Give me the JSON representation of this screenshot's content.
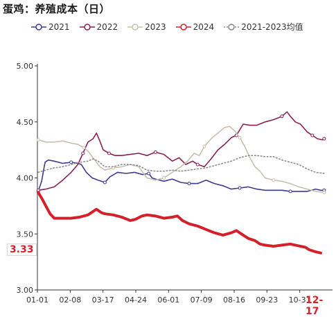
{
  "title": "蛋鸡：养殖成本（日）",
  "colors": {
    "y2021": "#3d3a8f",
    "y2022": "#8b1f54",
    "y2023": "#c9bfae",
    "y2024": "#d4202a",
    "avg": "#8a8a8a"
  },
  "chart_data": {
    "type": "line",
    "title": "蛋鸡：养殖成本（日）",
    "xlabel": "",
    "ylabel": "",
    "x_ticks": [
      "01-01",
      "02-08",
      "03-17",
      "04-24",
      "06-01",
      "07-09",
      "08-16",
      "09-23",
      "10-31",
      "12-17"
    ],
    "ylim": [
      3.0,
      5.0
    ],
    "y_ticks": [
      "3.00",
      "3.50",
      "4.00",
      "4.50",
      "5.00"
    ],
    "grid": false,
    "legend_position": "top",
    "last_value_label": "3.33",
    "last_date_label": "12-17",
    "series": [
      {
        "name": "2021",
        "key": "y2021",
        "style": "solid",
        "width": 1.6,
        "markers": true,
        "points": [
          [
            1,
            3.88
          ],
          [
            5,
            3.97
          ],
          [
            9,
            4.14
          ],
          [
            13,
            4.16
          ],
          [
            20,
            4.15
          ],
          [
            30,
            4.13
          ],
          [
            40,
            4.14
          ],
          [
            48,
            4.13
          ],
          [
            52,
            4.12
          ],
          [
            58,
            4.05
          ],
          [
            65,
            4.0
          ],
          [
            72,
            3.98
          ],
          [
            80,
            3.96
          ],
          [
            86,
            4.01
          ],
          [
            95,
            4.05
          ],
          [
            105,
            4.04
          ],
          [
            115,
            4.05
          ],
          [
            125,
            4.03
          ],
          [
            132,
            4.04
          ],
          [
            136,
            4.0
          ],
          [
            140,
            3.99
          ],
          [
            150,
            3.97
          ],
          [
            160,
            3.99
          ],
          [
            170,
            3.96
          ],
          [
            180,
            3.95
          ],
          [
            190,
            3.95
          ],
          [
            200,
            3.98
          ],
          [
            210,
            3.95
          ],
          [
            220,
            3.93
          ],
          [
            230,
            3.9
          ],
          [
            240,
            3.91
          ],
          [
            250,
            3.92
          ],
          [
            260,
            3.9
          ],
          [
            270,
            3.89
          ],
          [
            280,
            3.89
          ],
          [
            290,
            3.89
          ],
          [
            300,
            3.88
          ],
          [
            310,
            3.88
          ],
          [
            320,
            3.88
          ],
          [
            330,
            3.9
          ],
          [
            336,
            3.89
          ],
          [
            340,
            3.89
          ]
        ]
      },
      {
        "name": "2022",
        "key": "y2022",
        "style": "solid",
        "width": 1.6,
        "markers": true,
        "points": [
          [
            1,
            3.89
          ],
          [
            10,
            3.9
          ],
          [
            20,
            3.92
          ],
          [
            30,
            3.98
          ],
          [
            40,
            4.05
          ],
          [
            48,
            4.12
          ],
          [
            54,
            4.22
          ],
          [
            60,
            4.32
          ],
          [
            66,
            4.35
          ],
          [
            70,
            4.4
          ],
          [
            74,
            4.33
          ],
          [
            78,
            4.25
          ],
          [
            85,
            4.22
          ],
          [
            92,
            4.2
          ],
          [
            100,
            4.2
          ],
          [
            110,
            4.21
          ],
          [
            120,
            4.22
          ],
          [
            130,
            4.2
          ],
          [
            140,
            4.23
          ],
          [
            150,
            4.21
          ],
          [
            160,
            4.15
          ],
          [
            168,
            4.18
          ],
          [
            176,
            4.12
          ],
          [
            184,
            4.15
          ],
          [
            190,
            4.12
          ],
          [
            198,
            4.1
          ],
          [
            206,
            4.17
          ],
          [
            214,
            4.25
          ],
          [
            222,
            4.3
          ],
          [
            230,
            4.36
          ],
          [
            236,
            4.38
          ],
          [
            244,
            4.48
          ],
          [
            252,
            4.47
          ],
          [
            260,
            4.47
          ],
          [
            270,
            4.5
          ],
          [
            280,
            4.52
          ],
          [
            290,
            4.55
          ],
          [
            296,
            4.59
          ],
          [
            300,
            4.55
          ],
          [
            306,
            4.5
          ],
          [
            312,
            4.48
          ],
          [
            320,
            4.41
          ],
          [
            326,
            4.38
          ],
          [
            332,
            4.35
          ],
          [
            338,
            4.34
          ],
          [
            340,
            4.35
          ]
        ]
      },
      {
        "name": "2023",
        "key": "y2023",
        "style": "solid",
        "width": 1.6,
        "markers": true,
        "points": [
          [
            1,
            4.34
          ],
          [
            10,
            4.32
          ],
          [
            20,
            4.32
          ],
          [
            30,
            4.33
          ],
          [
            40,
            4.31
          ],
          [
            48,
            4.3
          ],
          [
            55,
            4.27
          ],
          [
            60,
            4.24
          ],
          [
            64,
            4.2
          ],
          [
            70,
            4.14
          ],
          [
            74,
            4.1
          ],
          [
            80,
            4.07
          ],
          [
            90,
            4.09
          ],
          [
            100,
            4.1
          ],
          [
            110,
            4.12
          ],
          [
            120,
            4.1
          ],
          [
            130,
            4.0
          ],
          [
            140,
            3.98
          ],
          [
            150,
            4.0
          ],
          [
            160,
            4.05
          ],
          [
            170,
            4.1
          ],
          [
            178,
            4.15
          ],
          [
            186,
            4.22
          ],
          [
            192,
            4.2
          ],
          [
            198,
            4.28
          ],
          [
            206,
            4.35
          ],
          [
            214,
            4.4
          ],
          [
            222,
            4.45
          ],
          [
            228,
            4.46
          ],
          [
            234,
            4.42
          ],
          [
            240,
            4.36
          ],
          [
            246,
            4.28
          ],
          [
            252,
            4.18
          ],
          [
            258,
            4.1
          ],
          [
            264,
            4.06
          ],
          [
            270,
            4.0
          ],
          [
            280,
            3.98
          ],
          [
            290,
            3.97
          ],
          [
            300,
            3.95
          ],
          [
            310,
            3.92
          ],
          [
            320,
            3.9
          ],
          [
            330,
            3.88
          ],
          [
            340,
            3.87
          ]
        ]
      },
      {
        "name": "2024",
        "key": "y2024",
        "style": "solid",
        "width": 4,
        "markers": false,
        "points": [
          [
            1,
            3.87
          ],
          [
            5,
            3.82
          ],
          [
            10,
            3.75
          ],
          [
            15,
            3.68
          ],
          [
            20,
            3.64
          ],
          [
            30,
            3.64
          ],
          [
            40,
            3.64
          ],
          [
            50,
            3.65
          ],
          [
            60,
            3.67
          ],
          [
            66,
            3.7
          ],
          [
            70,
            3.72
          ],
          [
            76,
            3.69
          ],
          [
            80,
            3.68
          ],
          [
            90,
            3.67
          ],
          [
            100,
            3.65
          ],
          [
            110,
            3.62
          ],
          [
            116,
            3.63
          ],
          [
            124,
            3.66
          ],
          [
            130,
            3.67
          ],
          [
            140,
            3.66
          ],
          [
            150,
            3.64
          ],
          [
            160,
            3.65
          ],
          [
            166,
            3.66
          ],
          [
            172,
            3.62
          ],
          [
            180,
            3.59
          ],
          [
            190,
            3.57
          ],
          [
            200,
            3.54
          ],
          [
            210,
            3.51
          ],
          [
            220,
            3.49
          ],
          [
            230,
            3.51
          ],
          [
            236,
            3.53
          ],
          [
            242,
            3.5
          ],
          [
            250,
            3.46
          ],
          [
            258,
            3.44
          ],
          [
            264,
            3.41
          ],
          [
            270,
            3.4
          ],
          [
            280,
            3.39
          ],
          [
            290,
            3.4
          ],
          [
            300,
            3.41
          ],
          [
            306,
            3.4
          ],
          [
            312,
            3.39
          ],
          [
            318,
            3.38
          ],
          [
            322,
            3.36
          ],
          [
            326,
            3.35
          ],
          [
            330,
            3.34
          ],
          [
            336,
            3.33
          ]
        ]
      },
      {
        "name": "2021-2023均值",
        "key": "avg",
        "style": "dotted",
        "width": 1.6,
        "markers": false,
        "points": [
          [
            1,
            4.05
          ],
          [
            10,
            4.07
          ],
          [
            20,
            4.09
          ],
          [
            30,
            4.1
          ],
          [
            40,
            4.12
          ],
          [
            50,
            4.14
          ],
          [
            60,
            4.15
          ],
          [
            66,
            4.17
          ],
          [
            72,
            4.15
          ],
          [
            80,
            4.1
          ],
          [
            90,
            4.1
          ],
          [
            100,
            4.12
          ],
          [
            110,
            4.12
          ],
          [
            120,
            4.11
          ],
          [
            130,
            4.07
          ],
          [
            140,
            4.06
          ],
          [
            150,
            4.06
          ],
          [
            160,
            4.07
          ],
          [
            170,
            4.06
          ],
          [
            180,
            4.07
          ],
          [
            190,
            4.08
          ],
          [
            200,
            4.09
          ],
          [
            210,
            4.11
          ],
          [
            220,
            4.13
          ],
          [
            230,
            4.15
          ],
          [
            240,
            4.18
          ],
          [
            250,
            4.2
          ],
          [
            260,
            4.2
          ],
          [
            270,
            4.19
          ],
          [
            280,
            4.19
          ],
          [
            290,
            4.16
          ],
          [
            300,
            4.14
          ],
          [
            310,
            4.12
          ],
          [
            320,
            4.08
          ],
          [
            330,
            4.05
          ],
          [
            340,
            4.04
          ]
        ]
      }
    ]
  }
}
